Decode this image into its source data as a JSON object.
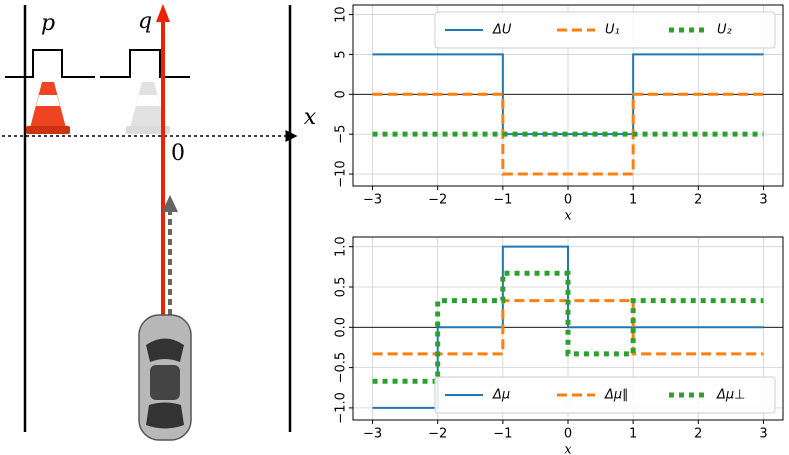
{
  "diagram": {
    "labels": {
      "p": "p",
      "q": "q",
      "x": "x",
      "origin": "0"
    }
  },
  "chart_data": [
    {
      "type": "line",
      "xlabel": "x",
      "grid": true,
      "legend": "upper right",
      "hline": 0,
      "x": [
        -3,
        -1,
        -1,
        1,
        1,
        3
      ],
      "xlim": [
        -3.3,
        3.3
      ],
      "xticks": [
        {
          "value": -3,
          "label": "−3"
        },
        {
          "value": -2,
          "label": "−2"
        },
        {
          "value": -1,
          "label": "−1"
        },
        0,
        1,
        2,
        3
      ],
      "ylim": [
        -11.5,
        11.2
      ],
      "yticks": [
        {
          "value": -10,
          "label": "−10"
        },
        {
          "value": -5,
          "label": "−5"
        },
        0,
        5,
        10
      ],
      "series": [
        {
          "name": "ΔU",
          "color": "#1f77b4",
          "style": "solid",
          "values": [
            5,
            5,
            -5,
            -5,
            5,
            5
          ]
        },
        {
          "name": "U₁",
          "color": "#ff7f0e",
          "style": "dashed",
          "values": [
            0,
            0,
            -10,
            -10,
            0,
            0
          ]
        },
        {
          "name": "U₂",
          "color": "#2ca02c",
          "style": "dotted",
          "values": [
            -5,
            -5,
            -5,
            -5,
            -5,
            -5
          ]
        }
      ]
    },
    {
      "type": "line",
      "xlabel": "x",
      "grid": true,
      "legend": "lower right",
      "hline": 0,
      "x": [
        -3,
        -2,
        -2,
        -1,
        -1,
        0,
        0,
        1,
        1,
        3
      ],
      "xlim": [
        -3.3,
        3.3
      ],
      "xticks": [
        {
          "value": -3,
          "label": "−3"
        },
        {
          "value": -2,
          "label": "−2"
        },
        {
          "value": -1,
          "label": "−1"
        },
        0,
        1,
        2,
        3
      ],
      "ylim": [
        -1.15,
        1.12
      ],
      "yticks": [
        {
          "value": -1,
          "label": "−1.0"
        },
        {
          "value": -0.5,
          "label": "−0.5"
        },
        {
          "value": 0,
          "label": "0.0"
        },
        {
          "value": 0.5,
          "label": "0.5"
        },
        {
          "value": 1,
          "label": "1.0"
        }
      ],
      "series": [
        {
          "name": "Δμ",
          "color": "#1f77b4",
          "style": "solid",
          "values": [
            -1,
            -1,
            0,
            0,
            1,
            1,
            0,
            0,
            0,
            0
          ]
        },
        {
          "name": "Δμ∥",
          "color": "#ff7f0e",
          "style": "dashed",
          "values": [
            -0.33,
            -0.33,
            -0.33,
            -0.33,
            0.33,
            0.33,
            0.33,
            0.33,
            -0.33,
            -0.33
          ]
        },
        {
          "name": "Δμ⊥",
          "color": "#2ca02c",
          "style": "dotted",
          "values": [
            -0.67,
            -0.67,
            0.33,
            0.33,
            0.67,
            0.67,
            -0.33,
            -0.33,
            0.33,
            0.33
          ]
        }
      ]
    }
  ]
}
